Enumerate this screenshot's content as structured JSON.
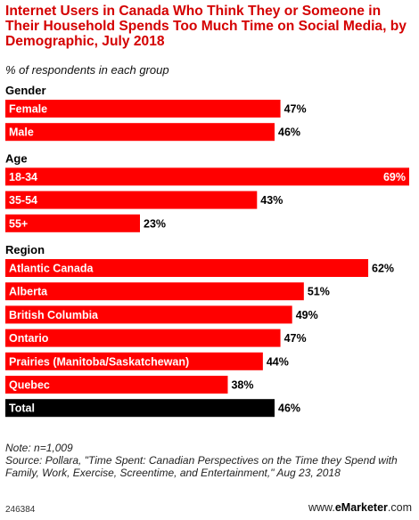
{
  "header": {
    "title": "Internet Users in Canada Who Think They or Someone in Their Household Spends Too Much Time on Social Media, by Demographic, July 2018",
    "subtitle": "% of respondents in each group"
  },
  "chart_data": {
    "type": "bar",
    "orientation": "horizontal",
    "unit": "%",
    "xlim": [
      0,
      69
    ],
    "grid": false,
    "colors": {
      "bar": "#ff0000",
      "total": "#000000",
      "label_on_bar": "#ffffff"
    },
    "groups": [
      {
        "name": "Gender",
        "bars": [
          {
            "label": "Female",
            "value": 47,
            "display": "47%"
          },
          {
            "label": "Male",
            "value": 46,
            "display": "46%"
          }
        ]
      },
      {
        "name": "Age",
        "bars": [
          {
            "label": "18-34",
            "value": 69,
            "display": "69%"
          },
          {
            "label": "35-54",
            "value": 43,
            "display": "43%"
          },
          {
            "label": "55+",
            "value": 23,
            "display": "23%"
          }
        ]
      },
      {
        "name": "Region",
        "bars": [
          {
            "label": "Atlantic Canada",
            "value": 62,
            "display": "62%"
          },
          {
            "label": "Alberta",
            "value": 51,
            "display": "51%"
          },
          {
            "label": "British Columbia",
            "value": 49,
            "display": "49%"
          },
          {
            "label": "Ontario",
            "value": 47,
            "display": "47%"
          },
          {
            "label": "Prairies (Manitoba/Saskatchewan)",
            "value": 44,
            "display": "44%"
          },
          {
            "label": "Quebec",
            "value": 38,
            "display": "38%"
          },
          {
            "label": "Total",
            "value": 46,
            "display": "46%",
            "total": true
          }
        ]
      }
    ]
  },
  "notes": {
    "note": "Note: n=1,009",
    "source": "Source: Pollara, \"Time Spent: Canadian Perspectives on the Time they Spend with Family, Work, Exercise, Screentime, and Entertainment,\" Aug 23, 2018"
  },
  "footer": {
    "chart_id": "246384",
    "brand_prefix": "www.",
    "brand_name": "eMarketer",
    "brand_suffix": ".com"
  }
}
